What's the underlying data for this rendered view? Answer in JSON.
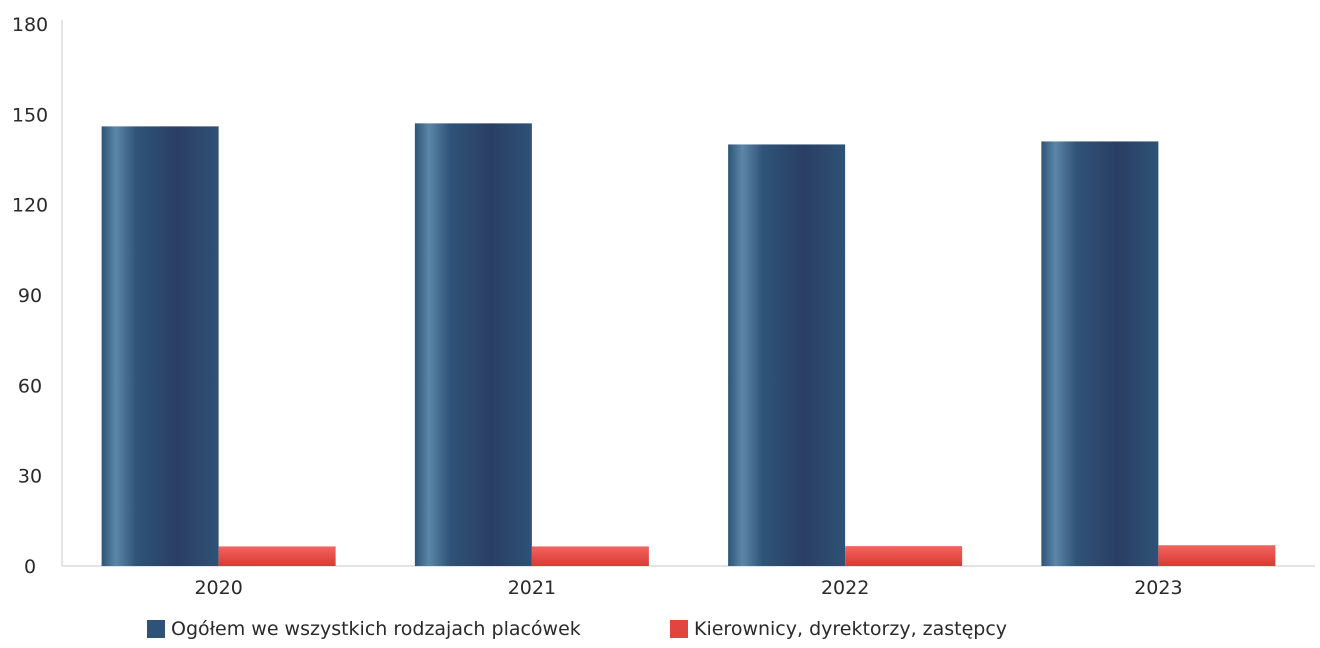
{
  "chart_data": {
    "type": "bar",
    "title": "",
    "xlabel": "",
    "ylabel": "",
    "categories": [
      "2020",
      "2021",
      "2022",
      "2023"
    ],
    "ylim": [
      0,
      180
    ],
    "yticks": [
      0,
      30,
      60,
      90,
      120,
      150,
      180
    ],
    "series": [
      {
        "name": "Ogółem we wszystkich rodzajach placówek",
        "color": "#2f5378",
        "values": [
          146,
          147,
          140,
          141
        ]
      },
      {
        "name": "Kierownicy, dyrektorzy, zastępcy",
        "color": "#e2453f",
        "values": [
          6.5,
          6.5,
          6.6,
          6.9
        ]
      }
    ],
    "grid": false,
    "legend_position": "bottom"
  }
}
